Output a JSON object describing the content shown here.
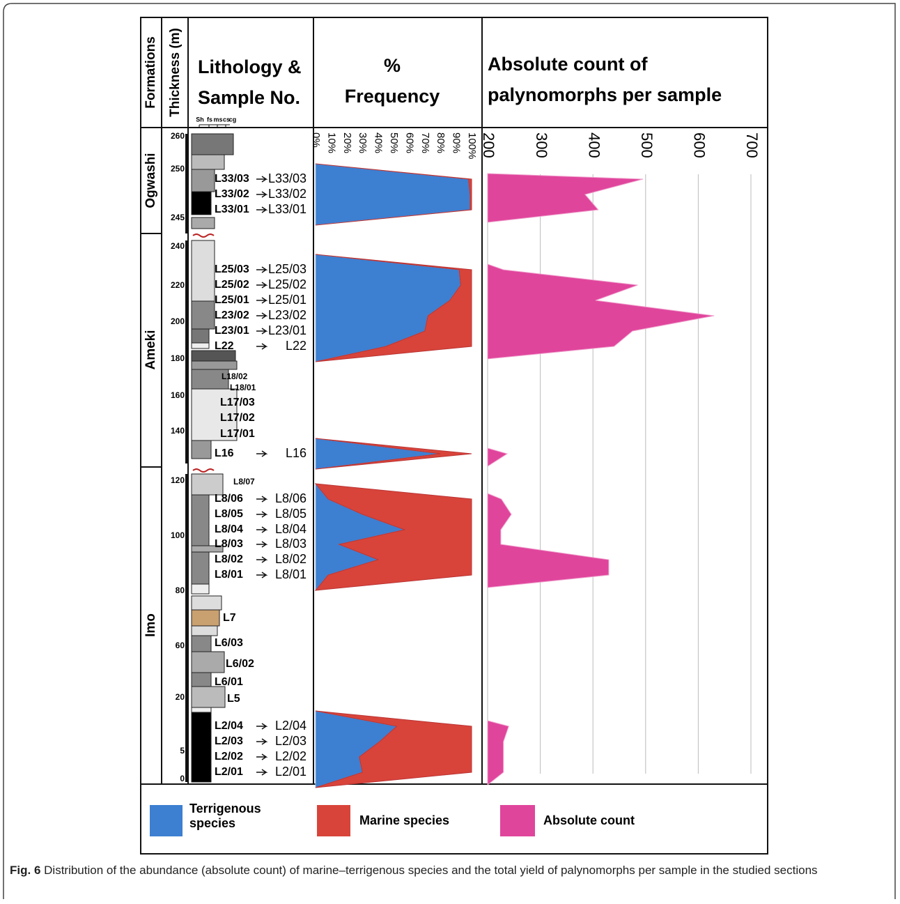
{
  "header": {
    "formations": "Formations",
    "thickness": "Thickness (m)",
    "lithology": [
      "Lithology &",
      "Sample No."
    ],
    "frequency": [
      "%",
      "Frequency"
    ],
    "count": [
      "Absolute count of",
      "palynomorphs per sample"
    ],
    "grain_sizes": [
      "Sh",
      "fs",
      "ms",
      "cs",
      "cg"
    ]
  },
  "formations": [
    "Ogwashi",
    "Ameki",
    "Imo"
  ],
  "thickness_ticks": [
    260,
    250,
    245,
    240,
    220,
    200,
    180,
    160,
    140,
    120,
    100,
    80,
    60,
    20,
    5,
    0
  ],
  "lithology": {
    "other_samples": [
      "L18/02",
      "L18/01",
      "L17/03",
      "L17/02",
      "L17/01",
      "L8/07",
      "L7",
      "L6/03",
      "L6/02",
      "L6/01",
      "L5"
    ]
  },
  "chart_data": {
    "type": "area",
    "categories": [
      "L33/03",
      "L33/02",
      "L33/01",
      "L25/03",
      "L25/02",
      "L25/01",
      "L23/02",
      "L23/01",
      "L22",
      "L16",
      "L8/06",
      "L8/05",
      "L8/04",
      "L8/03",
      "L8/02",
      "L8/01",
      "L2/04",
      "L2/03",
      "L2/02",
      "L2/01"
    ],
    "series": [
      {
        "name": "Terrigenous species",
        "color": "#3d7fd1",
        "values": [
          98,
          99,
          99,
          92,
          93,
          86,
          72,
          70,
          45,
          80,
          8,
          30,
          57,
          15,
          40,
          8,
          52,
          41,
          28,
          30
        ]
      },
      {
        "name": "Marine species",
        "color": "#d8443a",
        "values": [
          2,
          1,
          1,
          8,
          7,
          14,
          28,
          30,
          55,
          20,
          92,
          70,
          43,
          85,
          60,
          92,
          48,
          59,
          72,
          70
        ]
      },
      {
        "name": "Absolute count",
        "color": "#e0459c",
        "axis": "x2",
        "values": [
          495,
          385,
          410,
          230,
          485,
          405,
          630,
          475,
          440,
          237,
          226,
          245,
          225,
          225,
          430,
          430,
          240,
          230,
          230,
          230
        ]
      }
    ],
    "xlim": [
      0,
      100
    ],
    "xticks": [
      {
        "value": 0,
        "label": "0%"
      },
      {
        "value": 10,
        "label": "10%"
      },
      {
        "value": 20,
        "label": "20%"
      },
      {
        "value": 30,
        "label": "30%"
      },
      {
        "value": 40,
        "label": "40%"
      },
      {
        "value": 50,
        "label": "50%"
      },
      {
        "value": 60,
        "label": "60%"
      },
      {
        "value": 70,
        "label": "70%"
      },
      {
        "value": 80,
        "label": "80%"
      },
      {
        "value": 90,
        "label": "90%"
      },
      {
        "value": 100,
        "label": "100%"
      }
    ],
    "x2lim": [
      200,
      700
    ],
    "x2ticks": [
      200,
      300,
      400,
      500,
      600,
      700
    ],
    "x2grid": true
  },
  "caption": {
    "label": "Fig. 6",
    "text": "Distribution of the abundance (absolute count) of marine–terrigenous species and the total yield of palynomorphs per sample in the studied sections"
  }
}
